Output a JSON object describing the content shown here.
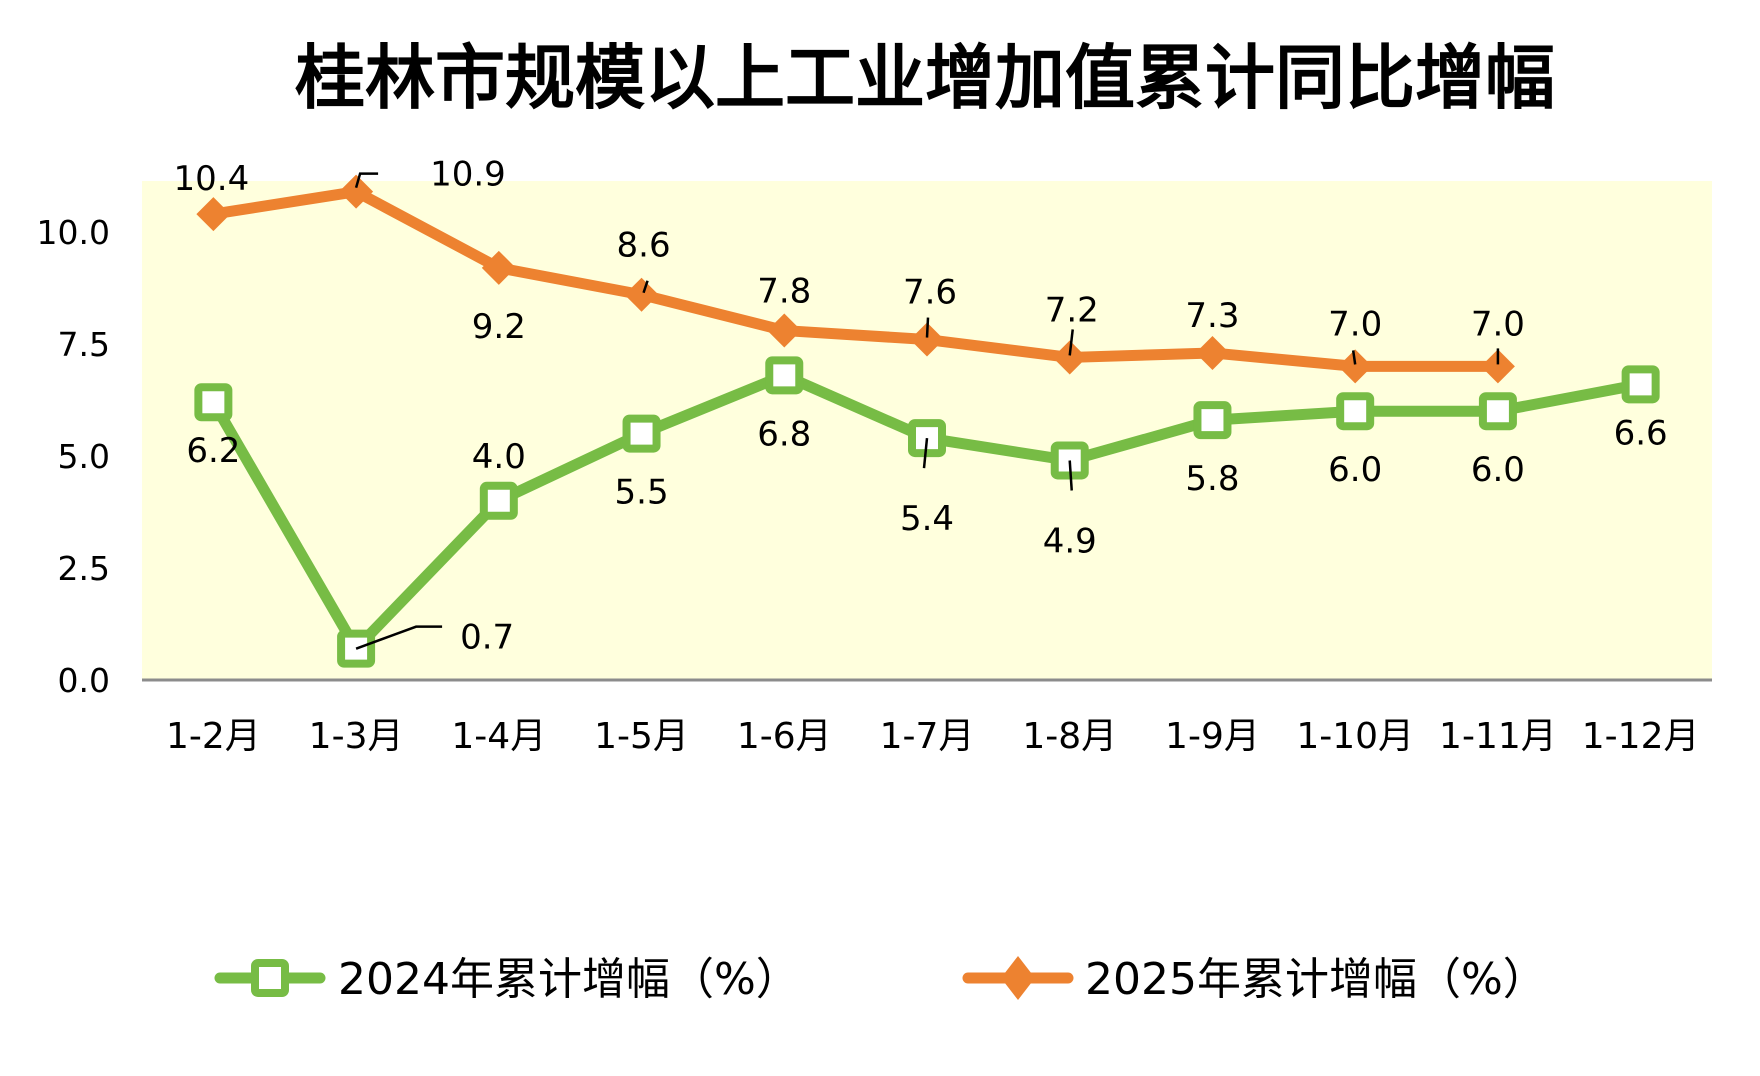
{
  "chart_data": {
    "type": "line",
    "title": "桂林市规模以上工业增加值累计同比增幅",
    "xlabel": "",
    "ylabel": "",
    "categories": [
      "1-2月",
      "1-3月",
      "1-4月",
      "1-5月",
      "1-6月",
      "1-7月",
      "1-8月",
      "1-9月",
      "1-10月",
      "1-11月",
      "1-12月"
    ],
    "ylim": [
      0,
      12
    ],
    "yticks": [
      0.0,
      2.5,
      5.0,
      7.5,
      10.0
    ],
    "ytick_labels": [
      "0.0",
      "2.5",
      "5.0",
      "7.5",
      "10.0"
    ],
    "grid": false,
    "plot_background": "#FFFFDD",
    "legend_position": "bottom",
    "series": [
      {
        "name": "2024年累计增幅（%）",
        "color": "#77BC45",
        "marker": "square-hollow",
        "values": [
          6.2,
          0.7,
          4.0,
          5.5,
          6.8,
          5.4,
          4.9,
          5.8,
          6.0,
          6.0,
          6.6
        ],
        "labels": [
          "6.2",
          "0.7",
          "4.0",
          "5.5",
          "6.8",
          "5.4",
          "4.9",
          "5.8",
          "6.0",
          "6.0",
          "6.6"
        ]
      },
      {
        "name": "2025年累计增幅（%）",
        "color": "#ED8230",
        "marker": "diamond",
        "values": [
          10.4,
          10.9,
          9.2,
          8.6,
          7.8,
          7.6,
          7.2,
          7.3,
          7.0,
          7.0,
          null
        ],
        "labels": [
          "10.4",
          "10.9",
          "9.2",
          "8.6",
          "7.8",
          "7.6",
          "7.2",
          "7.3",
          "7.0",
          "7.0",
          null
        ]
      }
    ]
  }
}
